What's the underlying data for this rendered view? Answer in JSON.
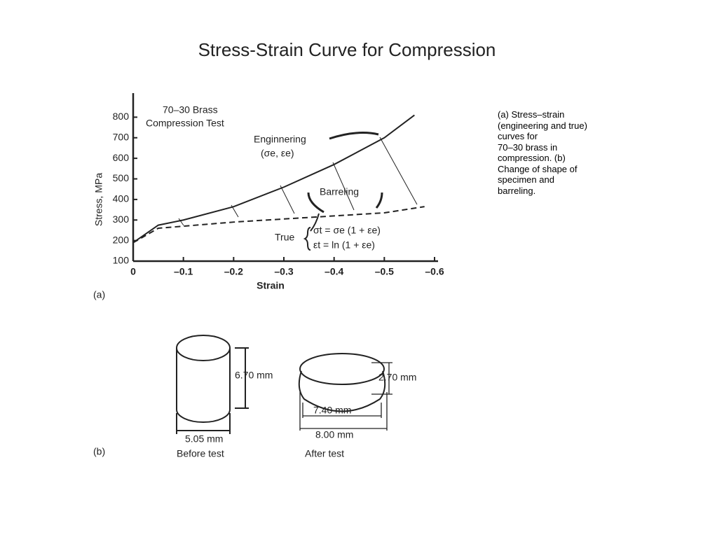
{
  "title": "Stress-Strain Curve for Compression",
  "caption": [
    "(a) Stress–strain",
    "(engineering and true)",
    "curves for",
    "70–30 brass in",
    "compression. (b)",
    "Change of shape of",
    "specimen and",
    "barreling."
  ],
  "chart_data": {
    "type": "line",
    "x_label": "Strain",
    "y_label": "Stress, MPa",
    "panel_label": "(a)",
    "annotations": [
      "70–30 Brass",
      "Compression Test",
      "Enginnering",
      "(σe, εe)",
      "Barreling",
      "True",
      "σt = σe (1 + εe)",
      "εt = ln (1 + εe)"
    ],
    "x": [
      0,
      -0.05,
      -0.1,
      -0.2,
      -0.3,
      -0.4,
      -0.5,
      -0.56
    ],
    "series": [
      {
        "name": "Enginnering",
        "color": "#222222",
        "dash": false,
        "x": [
          0,
          -0.05,
          -0.1,
          -0.2,
          -0.3,
          -0.4,
          -0.5,
          -0.56
        ],
        "values": [
          190,
          275,
          300,
          365,
          460,
          570,
          700,
          810
        ]
      },
      {
        "name": "True",
        "color": "#222222",
        "dash": true,
        "x": [
          0,
          -0.05,
          -0.1,
          -0.2,
          -0.3,
          -0.4,
          -0.5,
          -0.58
        ],
        "values": [
          190,
          260,
          270,
          290,
          305,
          320,
          335,
          365
        ]
      }
    ],
    "xlim": [
      0,
      -0.6
    ],
    "xticks": [
      0,
      {
        "value": -0.1,
        "label": "–0.1"
      },
      {
        "value": -0.2,
        "label": "–0.2"
      },
      {
        "value": -0.3,
        "label": "–0.3"
      },
      {
        "value": -0.4,
        "label": "–0.4"
      },
      {
        "value": -0.5,
        "label": "–0.5"
      },
      {
        "value": -0.6,
        "label": "–0.6"
      }
    ],
    "ylim": [
      100,
      900
    ],
    "yticks": [
      100,
      200,
      300,
      400,
      500,
      600,
      700,
      800
    ],
    "grid": false
  },
  "diagram": {
    "panel_label": "(b)",
    "before": {
      "height": "6.70 mm",
      "diameter": "5.05 mm",
      "label": "Before test"
    },
    "after": {
      "height": "2.70 mm",
      "inner_diameter": "7.40 mm",
      "diameter": "8.00 mm",
      "label": "After test"
    }
  }
}
